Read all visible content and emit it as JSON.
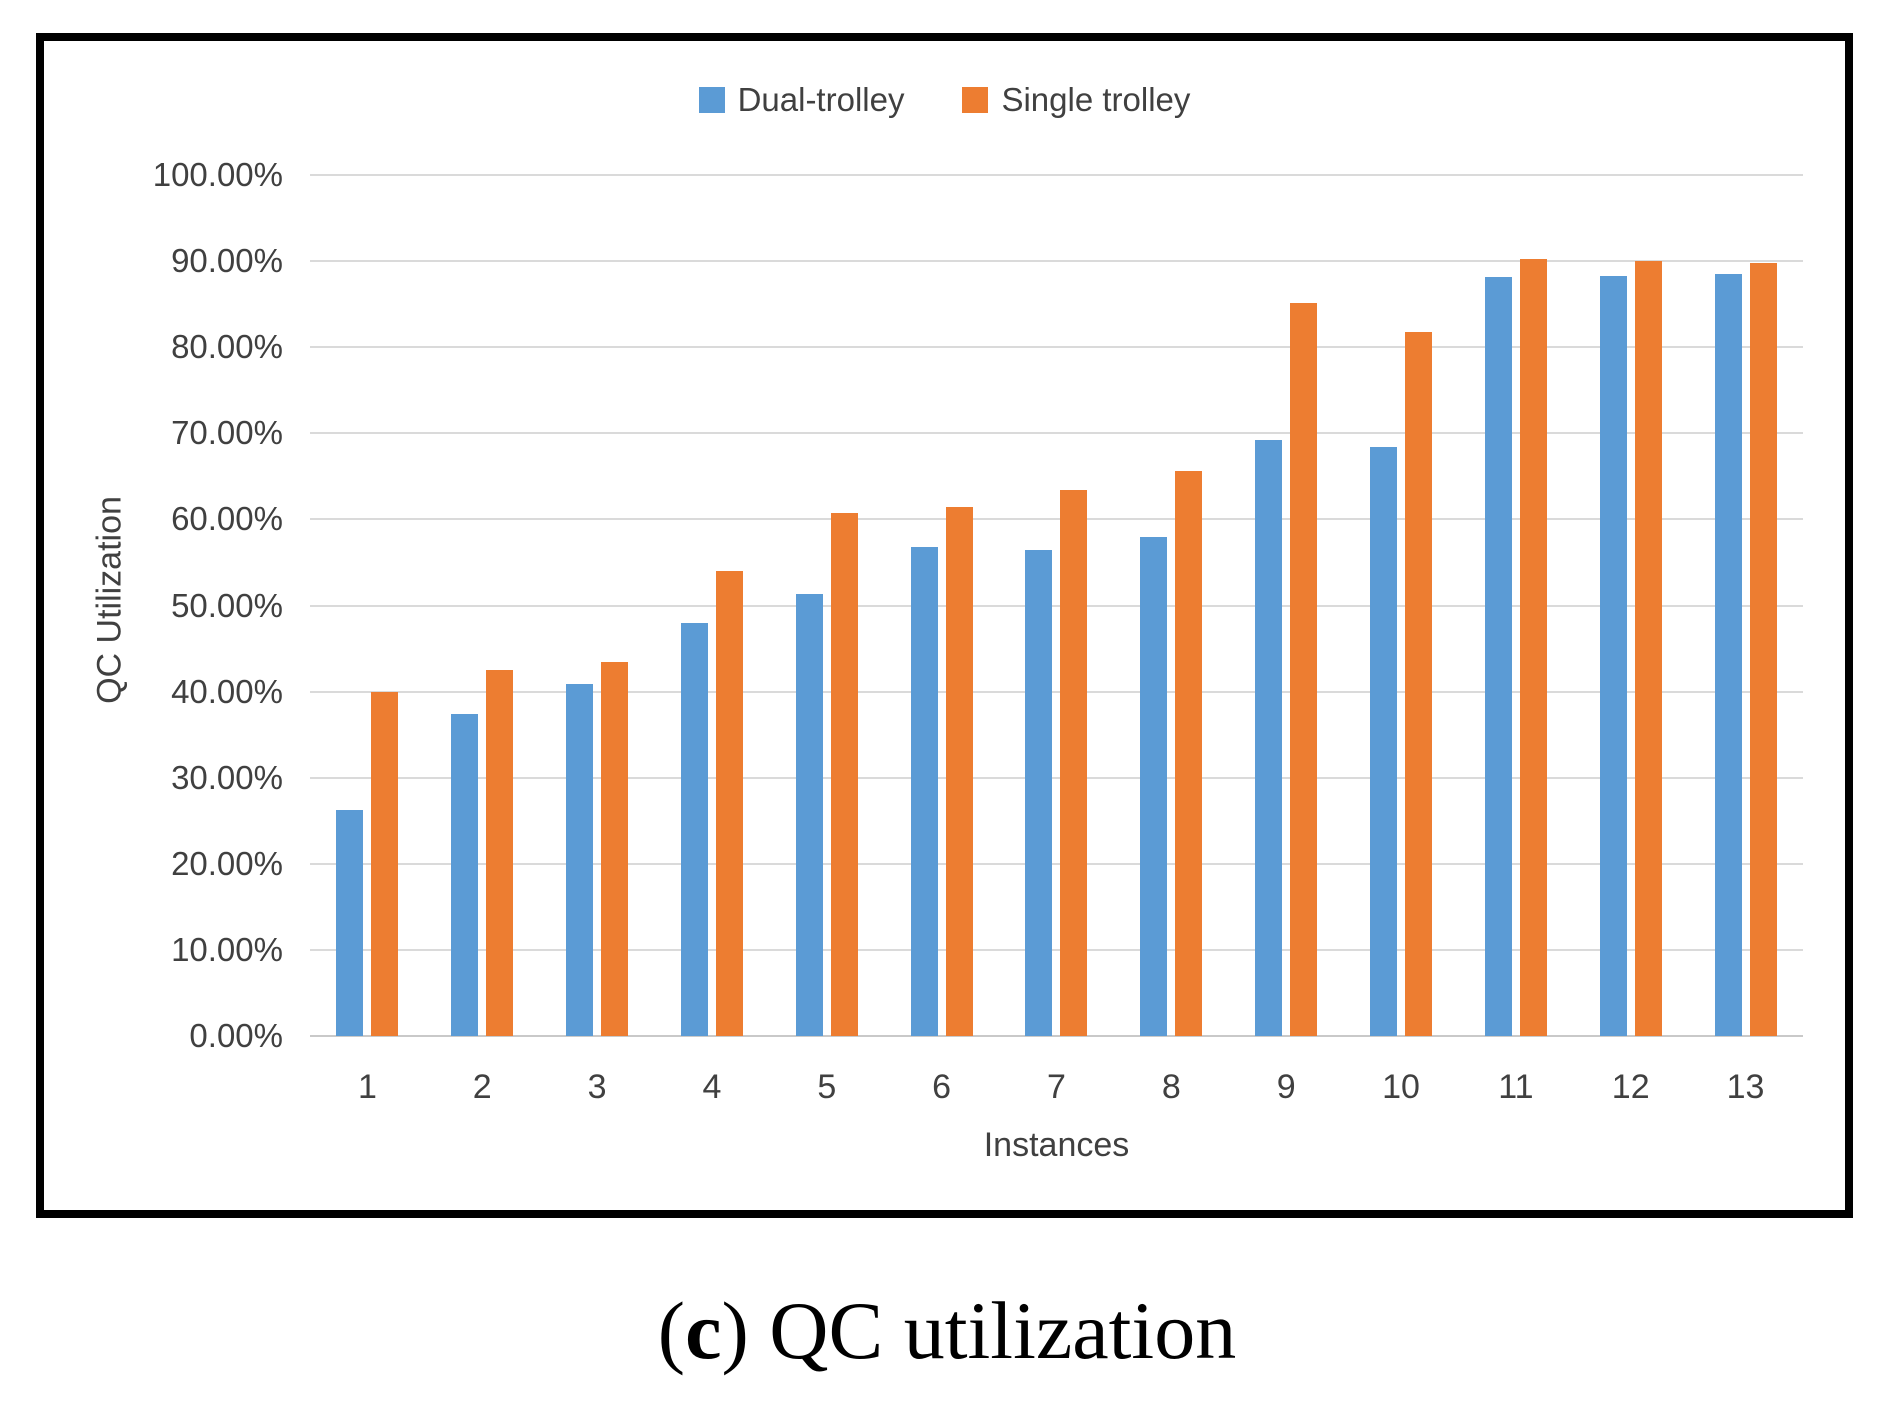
{
  "caption": {
    "open_paren": "(",
    "letter": "c",
    "suffix": ") QC utilization"
  },
  "axis": {
    "y_tick_labels": [
      "100.00%",
      "90.00%",
      "80.00%",
      "70.00%",
      "60.00%",
      "50.00%",
      "40.00%",
      "30.00%",
      "20.00%",
      "10.00%",
      "0.00%"
    ]
  },
  "colors": {
    "dual_trolley": "#5B9BD5",
    "single_trolley": "#ED7D31",
    "gridline": "#DADADA",
    "text": "#404040"
  },
  "chart_data": {
    "type": "bar",
    "title": "",
    "categories": [
      "1",
      "2",
      "3",
      "4",
      "5",
      "6",
      "7",
      "8",
      "9",
      "10",
      "11",
      "12",
      "13"
    ],
    "series": [
      {
        "name": "Dual-trolley",
        "color": "#5B9BD5",
        "values": [
          26.3,
          37.4,
          40.9,
          48.0,
          51.3,
          56.8,
          56.4,
          58.0,
          69.2,
          68.4,
          88.1,
          88.3,
          88.5
        ]
      },
      {
        "name": "Single trolley",
        "color": "#ED7D31",
        "values": [
          40.0,
          42.5,
          43.4,
          54.0,
          60.8,
          61.5,
          63.4,
          65.6,
          85.1,
          81.8,
          90.3,
          90.0,
          89.8
        ]
      }
    ],
    "xlabel": "Instances",
    "ylabel": "QC Utilization",
    "ylim": [
      0,
      100
    ],
    "ytick_step": 10,
    "ytick_format": "percent-2-decimals",
    "values_unit": "%",
    "grid": true,
    "legend_position": "top-center"
  }
}
